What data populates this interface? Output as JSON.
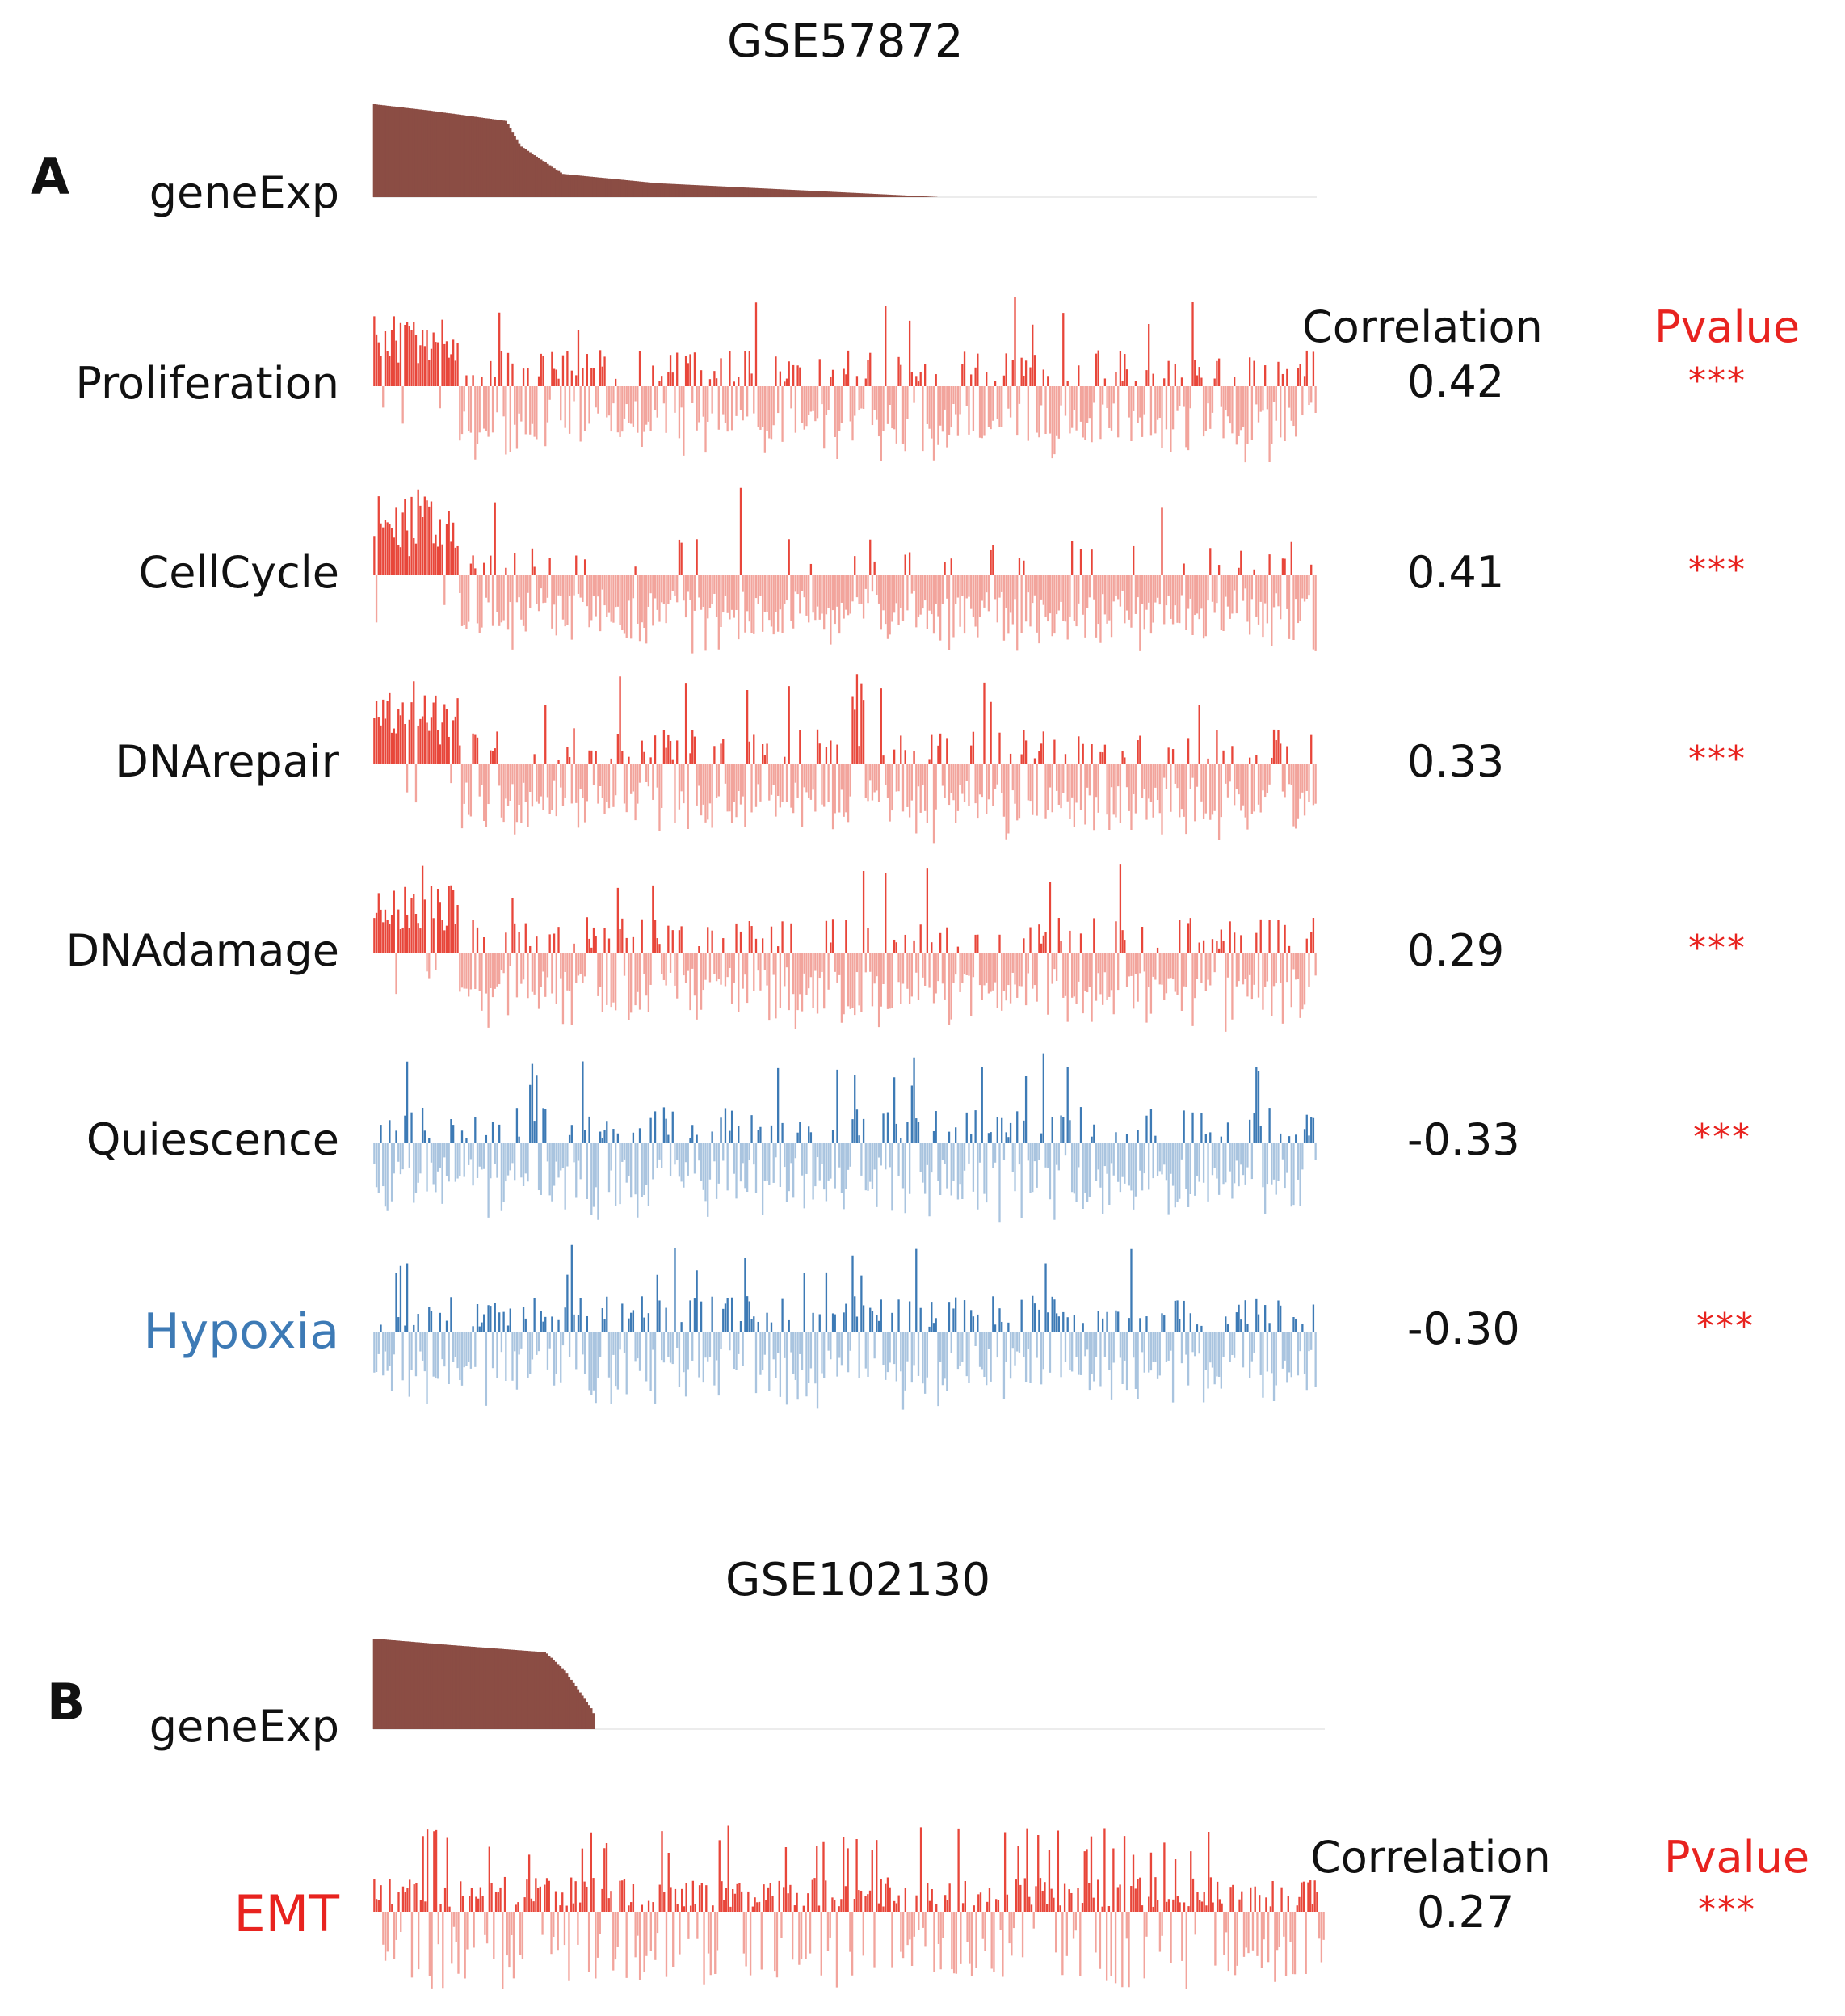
{
  "chart_data": [
    {
      "type": "bar",
      "panel": "A",
      "title": "GSE57872",
      "gene_row": {
        "label": "geneExp",
        "color": "#8b4d44",
        "n_samples": 430,
        "profile": [
          [
            0,
            1.0
          ],
          [
            0.06,
            0.93
          ],
          [
            0.14,
            0.82
          ],
          [
            0.155,
            0.55
          ],
          [
            0.2,
            0.25
          ],
          [
            0.3,
            0.15
          ],
          [
            0.6,
            0.0
          ]
        ]
      },
      "columns": {
        "correlation": "Correlation",
        "pvalue": "Pvalue"
      },
      "rows": [
        {
          "label": "Proliferation",
          "correlation": "0.42",
          "stars": "***",
          "color": "#e8463a",
          "light": "#f2a49c",
          "label_color": "#111111",
          "highBlock": 0.09,
          "density": 0.35
        },
        {
          "label": "CellCycle",
          "correlation": "0.41",
          "stars": "***",
          "color": "#e8463a",
          "light": "#f2a49c",
          "label_color": "#111111",
          "highBlock": 0.09,
          "density": 0.12
        },
        {
          "label": "DNArepair",
          "correlation": "0.33",
          "stars": "***",
          "color": "#e8463a",
          "light": "#f2a49c",
          "label_color": "#111111",
          "highBlock": 0.09,
          "density": 0.28
        },
        {
          "label": "DNAdamage",
          "correlation": "0.29",
          "stars": "***",
          "color": "#e8463a",
          "light": "#f2a49c",
          "label_color": "#111111",
          "highBlock": 0.09,
          "density": 0.3
        },
        {
          "label": "Quiescence",
          "correlation": "-0.33",
          "stars": "***",
          "color": "#3d7ab5",
          "light": "#a9c4df",
          "label_color": "#111111",
          "highBlock": 0,
          "density": 0.38
        },
        {
          "label": "Hypoxia",
          "correlation": "-0.30",
          "stars": "***",
          "color": "#3d7ab5",
          "light": "#a9c4df",
          "label_color": "#3d7ab5",
          "highBlock": 0,
          "density": 0.4
        }
      ]
    },
    {
      "type": "bar",
      "panel": "B",
      "title": "GSE102130",
      "gene_row": {
        "label": "geneExp",
        "color": "#8b4d44",
        "n_samples": 430,
        "profile": [
          [
            0,
            1.0
          ],
          [
            0.08,
            0.93
          ],
          [
            0.18,
            0.85
          ],
          [
            0.2,
            0.65
          ],
          [
            0.23,
            0.2
          ],
          [
            0.232,
            0.0
          ]
        ]
      },
      "columns": {
        "correlation": "Correlation",
        "pvalue": "Pvalue"
      },
      "rows": [
        {
          "label": "EMT",
          "correlation": "0.27",
          "stars": "***",
          "color": "#e8463a",
          "light": "#f2a49c",
          "label_color": "#e8231f",
          "highBlock": 0,
          "density": 0.62
        }
      ]
    }
  ]
}
